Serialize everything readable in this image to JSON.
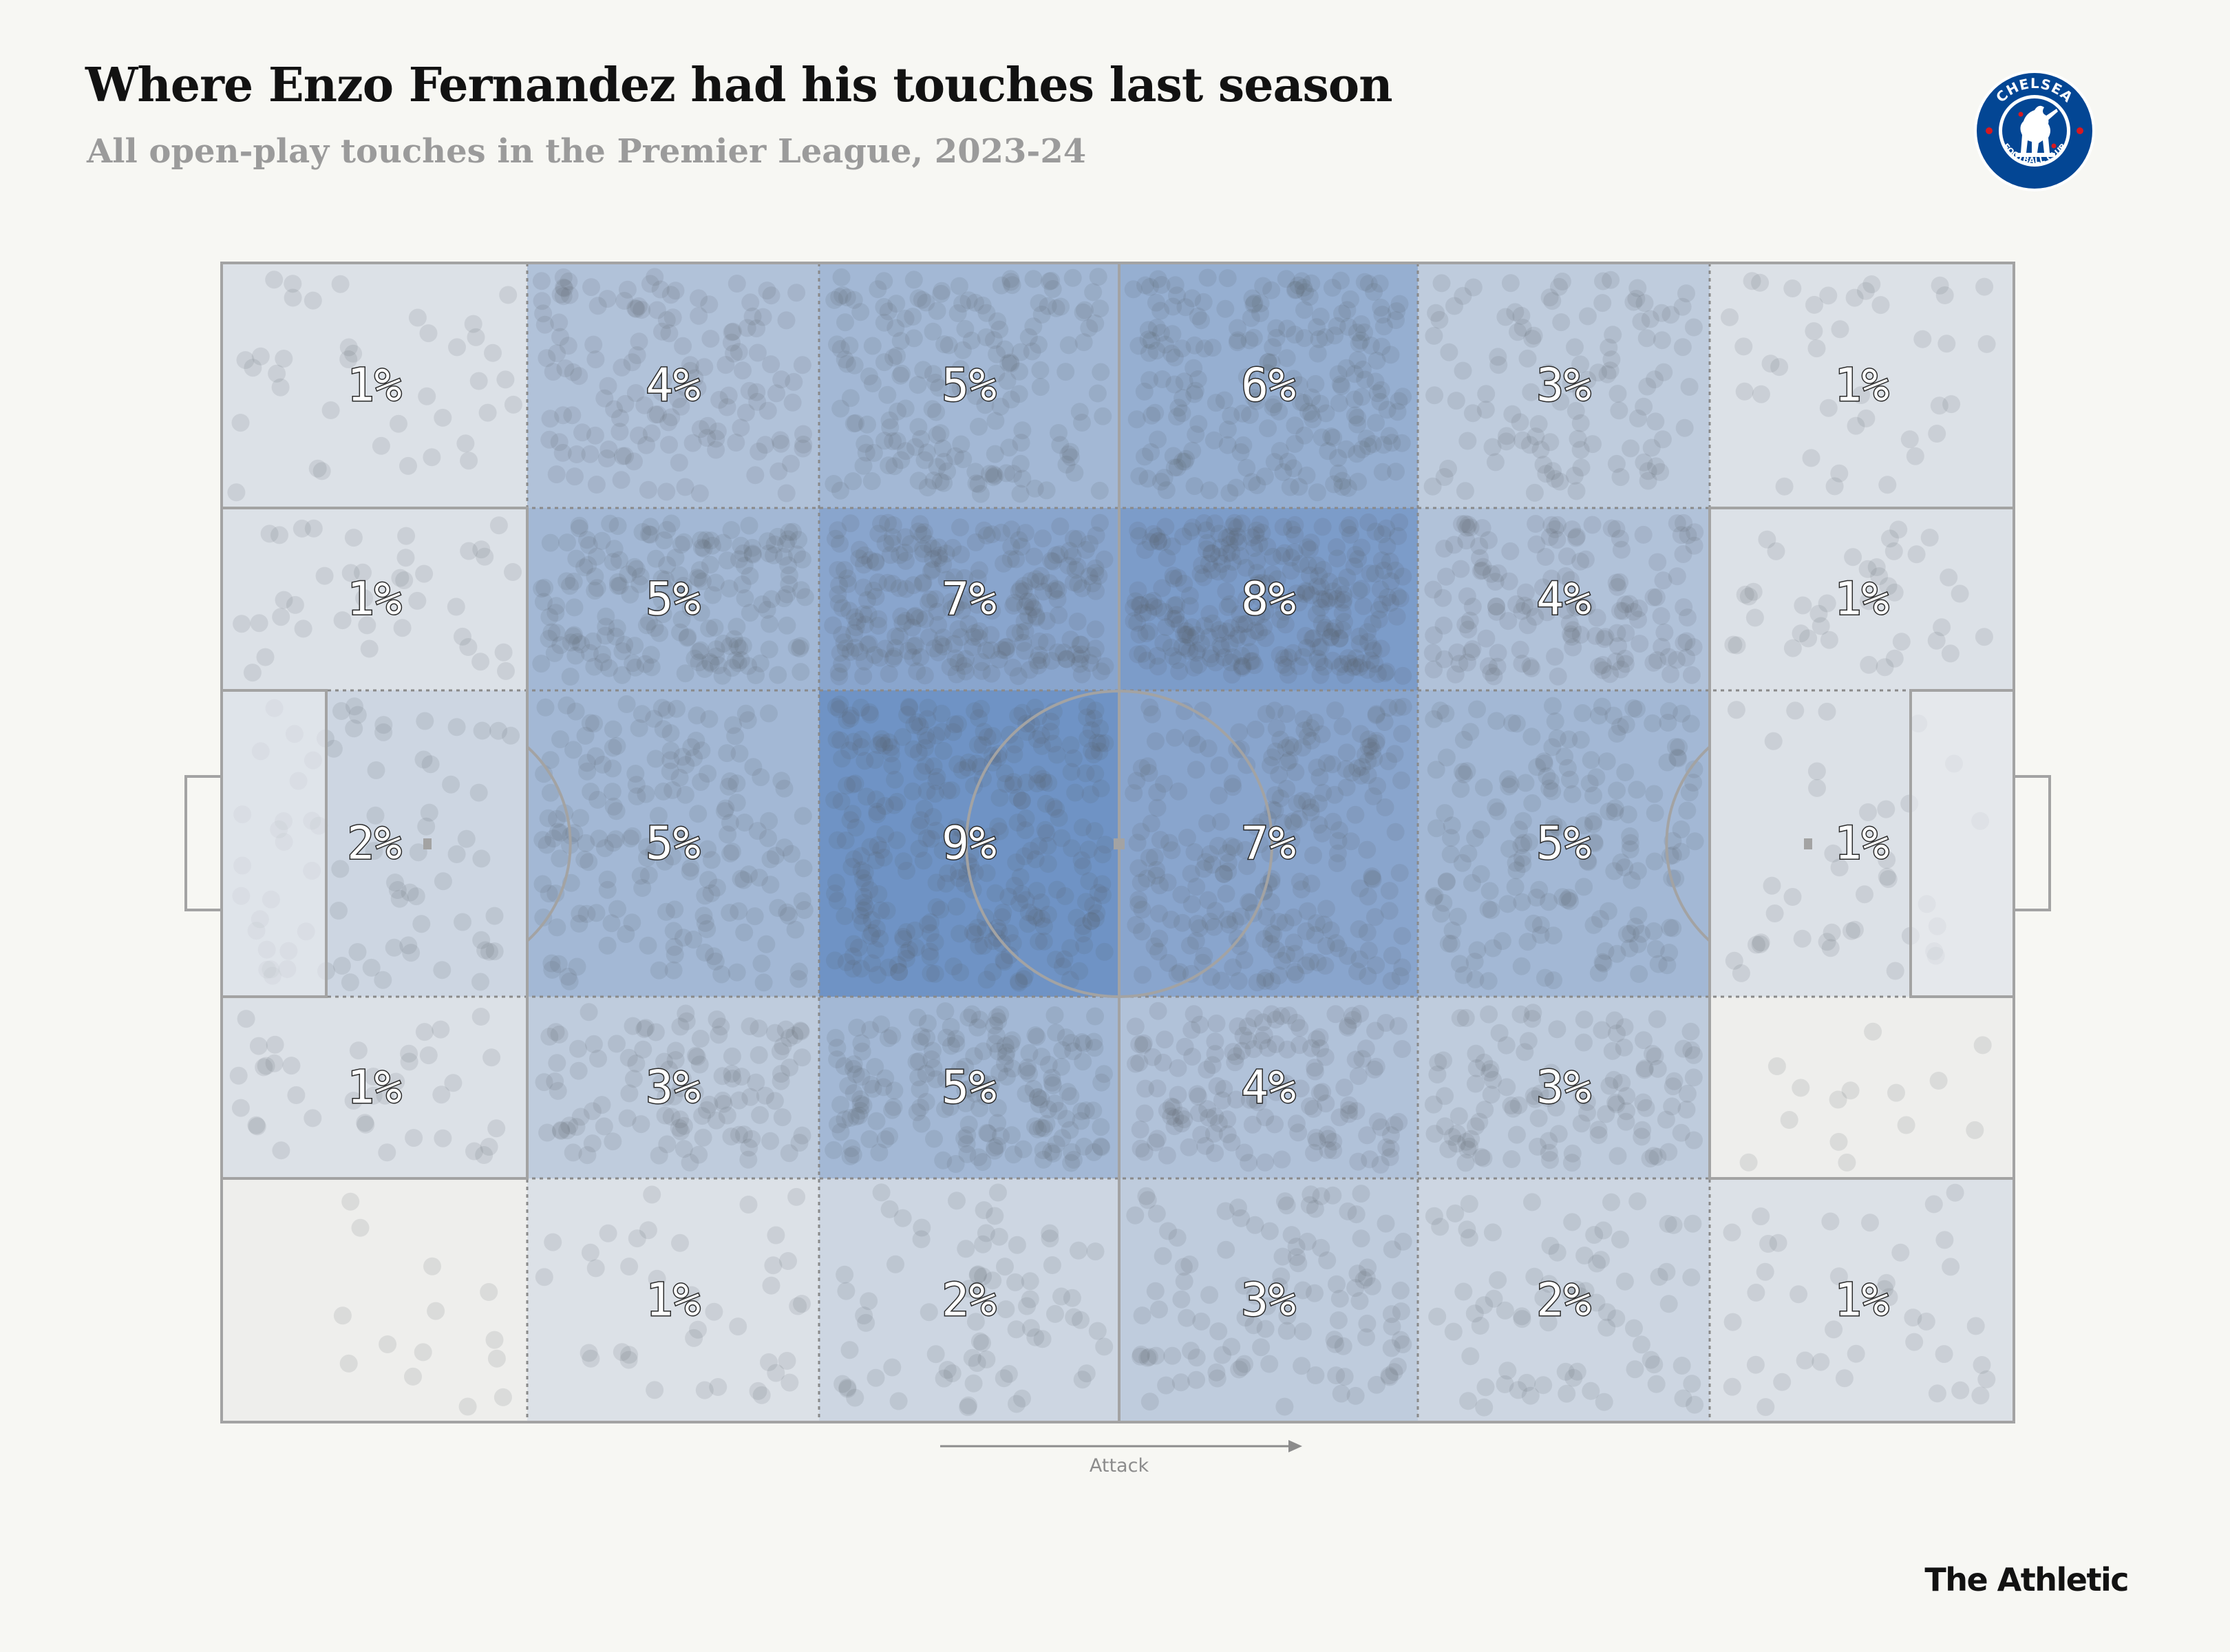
{
  "title": "Where Enzo Fernandez had his touches last season",
  "subtitle": "All open-play touches in the Premier League, 2023-24",
  "credit": "The Athletic",
  "logo": {
    "name": "Chelsea Football Club crest",
    "text_top": "CHELSEA",
    "text_bottom": "FOOTBALL CLUB",
    "colors": {
      "blue": "#034694",
      "red": "#d71920",
      "white": "#ffffff"
    }
  },
  "colors": {
    "background": "#f7f7f3",
    "zone_base": "#eeeeed",
    "zone_high": "#6f93c5",
    "line": "#a9a9a9",
    "dot": "#555b66"
  },
  "chart_data": {
    "type": "heatmap",
    "title": "Where Enzo Fernandez had his touches last season",
    "subtitle": "All open-play touches in the Premier League, 2023-24",
    "direction_label": "Attack",
    "value_unit": "%",
    "rows": 5,
    "columns": 6,
    "cells": [
      [
        "1%",
        "4%",
        "5%",
        "6%",
        "3%",
        "1%"
      ],
      [
        "1%",
        "5%",
        "7%",
        "8%",
        "4%",
        "1%"
      ],
      [
        "2%",
        "5%",
        "9%",
        "7%",
        "5%",
        "1%"
      ],
      [
        "1%",
        "3%",
        "5%",
        "4%",
        "3%",
        ""
      ],
      [
        "",
        "1%",
        "2%",
        "3%",
        "2%",
        "1%"
      ]
    ],
    "values": [
      [
        1,
        4,
        5,
        6,
        3,
        1
      ],
      [
        1,
        5,
        7,
        8,
        4,
        1
      ],
      [
        2,
        5,
        9,
        7,
        5,
        1
      ],
      [
        1,
        3,
        5,
        4,
        3,
        0
      ],
      [
        0,
        1,
        2,
        3,
        2,
        1
      ]
    ]
  }
}
